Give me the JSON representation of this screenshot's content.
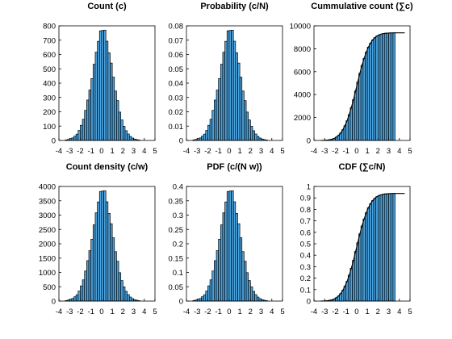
{
  "chart_data": [
    {
      "type": "bar",
      "title": "Count (c)",
      "xlim": [
        -4,
        5
      ],
      "ylim": [
        0,
        800
      ],
      "xticks": [
        "-4",
        "-3",
        "-2",
        "-1",
        "0",
        "1",
        "2",
        "3",
        "4",
        "5"
      ],
      "yticks": [
        "0",
        "100",
        "200",
        "300",
        "400",
        "500",
        "600",
        "700",
        "800"
      ],
      "bin_centers": [
        -3.3,
        -3.1,
        -2.9,
        -2.7,
        -2.5,
        -2.3,
        -2.1,
        -1.9,
        -1.7,
        -1.5,
        -1.3,
        -1.1,
        -0.9,
        -0.7,
        -0.5,
        -0.3,
        -0.1,
        0.1,
        0.3,
        0.5,
        0.7,
        0.9,
        1.1,
        1.3,
        1.5,
        1.7,
        1.9,
        2.1,
        2.3,
        2.5,
        2.7,
        2.9,
        3.1,
        3.3,
        3.5
      ],
      "values": [
        4,
        7,
        13,
        18,
        30,
        44,
        70,
        106,
        148,
        210,
        282,
        352,
        432,
        532,
        616,
        692,
        765,
        768,
        770,
        693,
        612,
        540,
        442,
        345,
        278,
        198,
        143,
        99,
        68,
        45,
        28,
        17,
        10,
        6,
        3
      ]
    },
    {
      "type": "bar",
      "title": "Probability (c/N)",
      "xlim": [
        -4,
        5
      ],
      "ylim": [
        0,
        0.08
      ],
      "xticks": [
        "-4",
        "-3",
        "-2",
        "-1",
        "0",
        "1",
        "2",
        "3",
        "4",
        "5"
      ],
      "yticks": [
        "0",
        "0.01",
        "0.02",
        "0.03",
        "0.04",
        "0.05",
        "0.06",
        "0.07",
        "0.08"
      ],
      "bin_centers": [
        -3.3,
        -3.1,
        -2.9,
        -2.7,
        -2.5,
        -2.3,
        -2.1,
        -1.9,
        -1.7,
        -1.5,
        -1.3,
        -1.1,
        -0.9,
        -0.7,
        -0.5,
        -0.3,
        -0.1,
        0.1,
        0.3,
        0.5,
        0.7,
        0.9,
        1.1,
        1.3,
        1.5,
        1.7,
        1.9,
        2.1,
        2.3,
        2.5,
        2.7,
        2.9,
        3.1,
        3.3,
        3.5
      ],
      "values": [
        0.0004,
        0.0007,
        0.0013,
        0.0018,
        0.003,
        0.0044,
        0.007,
        0.0106,
        0.0148,
        0.021,
        0.0282,
        0.0352,
        0.0432,
        0.0532,
        0.0616,
        0.0692,
        0.0765,
        0.0768,
        0.077,
        0.0693,
        0.0612,
        0.054,
        0.0442,
        0.0345,
        0.0278,
        0.0198,
        0.0143,
        0.0099,
        0.0068,
        0.0045,
        0.0028,
        0.0017,
        0.001,
        0.0006,
        0.0003
      ]
    },
    {
      "type": "bar",
      "title": "Cummulative count (∑c)",
      "xlim": [
        -4,
        5
      ],
      "ylim": [
        0,
        10000
      ],
      "xticks": [
        "-4",
        "-3",
        "-2",
        "-1",
        "0",
        "1",
        "2",
        "3",
        "4",
        "5"
      ],
      "yticks": [
        "0",
        "2000",
        "4000",
        "6000",
        "8000",
        "10000"
      ],
      "bin_centers": [
        -3.3,
        -3.1,
        -2.9,
        -2.7,
        -2.5,
        -2.3,
        -2.1,
        -1.9,
        -1.7,
        -1.5,
        -1.3,
        -1.1,
        -0.9,
        -0.7,
        -0.5,
        -0.3,
        -0.1,
        0.1,
        0.3,
        0.5,
        0.7,
        0.9,
        1.1,
        1.3,
        1.5,
        1.7,
        1.9,
        2.1,
        2.3,
        2.5,
        2.7,
        2.9,
        3.1,
        3.3,
        3.5
      ],
      "values": [
        4,
        11,
        24,
        42,
        72,
        116,
        186,
        292,
        440,
        650,
        932,
        1284,
        1716,
        2248,
        2864,
        3556,
        4321,
        5089,
        5859,
        6552,
        7164,
        7704,
        8146,
        8491,
        8769,
        8967,
        9110,
        9209,
        9277,
        9322,
        9350,
        9367,
        9377,
        9383,
        9386
      ],
      "curve": true
    },
    {
      "type": "bar",
      "title": "Count density (c/w)",
      "xlim": [
        -4,
        5
      ],
      "ylim": [
        0,
        4000
      ],
      "xticks": [
        "-4",
        "-3",
        "-2",
        "-1",
        "0",
        "1",
        "2",
        "3",
        "4",
        "5"
      ],
      "yticks": [
        "0",
        "500",
        "1000",
        "1500",
        "2000",
        "2500",
        "3000",
        "3500",
        "4000"
      ],
      "bin_centers": [
        -3.3,
        -3.1,
        -2.9,
        -2.7,
        -2.5,
        -2.3,
        -2.1,
        -1.9,
        -1.7,
        -1.5,
        -1.3,
        -1.1,
        -0.9,
        -0.7,
        -0.5,
        -0.3,
        -0.1,
        0.1,
        0.3,
        0.5,
        0.7,
        0.9,
        1.1,
        1.3,
        1.5,
        1.7,
        1.9,
        2.1,
        2.3,
        2.5,
        2.7,
        2.9,
        3.1,
        3.3,
        3.5
      ],
      "values": [
        20,
        35,
        65,
        90,
        150,
        220,
        350,
        530,
        740,
        1050,
        1410,
        1760,
        2160,
        2660,
        3080,
        3460,
        3825,
        3840,
        3850,
        3465,
        3060,
        2700,
        2210,
        1725,
        1390,
        990,
        715,
        495,
        340,
        225,
        140,
        85,
        50,
        30,
        15
      ]
    },
    {
      "type": "bar",
      "title": "PDF (c/(N w))",
      "xlim": [
        -4,
        5
      ],
      "ylim": [
        0,
        0.4
      ],
      "xticks": [
        "-4",
        "-3",
        "-2",
        "-1",
        "0",
        "1",
        "2",
        "3",
        "4",
        "5"
      ],
      "yticks": [
        "0",
        "0.05",
        "0.1",
        "0.15",
        "0.2",
        "0.25",
        "0.3",
        "0.35",
        "0.4"
      ],
      "bin_centers": [
        -3.3,
        -3.1,
        -2.9,
        -2.7,
        -2.5,
        -2.3,
        -2.1,
        -1.9,
        -1.7,
        -1.5,
        -1.3,
        -1.1,
        -0.9,
        -0.7,
        -0.5,
        -0.3,
        -0.1,
        0.1,
        0.3,
        0.5,
        0.7,
        0.9,
        1.1,
        1.3,
        1.5,
        1.7,
        1.9,
        2.1,
        2.3,
        2.5,
        2.7,
        2.9,
        3.1,
        3.3,
        3.5
      ],
      "values": [
        0.002,
        0.0035,
        0.0065,
        0.009,
        0.015,
        0.022,
        0.035,
        0.053,
        0.074,
        0.105,
        0.141,
        0.176,
        0.216,
        0.266,
        0.308,
        0.346,
        0.3825,
        0.384,
        0.385,
        0.3465,
        0.306,
        0.27,
        0.221,
        0.1725,
        0.139,
        0.099,
        0.0715,
        0.0495,
        0.034,
        0.0225,
        0.014,
        0.0085,
        0.005,
        0.003,
        0.0015
      ]
    },
    {
      "type": "bar",
      "title": "CDF (∑c/N)",
      "xlim": [
        -4,
        5
      ],
      "ylim": [
        0,
        1
      ],
      "xticks": [
        "-4",
        "-3",
        "-2",
        "-1",
        "0",
        "1",
        "2",
        "3",
        "4",
        "5"
      ],
      "yticks": [
        "0",
        "0.1",
        "0.2",
        "0.3",
        "0.4",
        "0.5",
        "0.6",
        "0.7",
        "0.8",
        "0.9",
        "1"
      ],
      "bin_centers": [
        -3.3,
        -3.1,
        -2.9,
        -2.7,
        -2.5,
        -2.3,
        -2.1,
        -1.9,
        -1.7,
        -1.5,
        -1.3,
        -1.1,
        -0.9,
        -0.7,
        -0.5,
        -0.3,
        -0.1,
        0.1,
        0.3,
        0.5,
        0.7,
        0.9,
        1.1,
        1.3,
        1.5,
        1.7,
        1.9,
        2.1,
        2.3,
        2.5,
        2.7,
        2.9,
        3.1,
        3.3,
        3.5
      ],
      "values": [
        0.0004,
        0.0011,
        0.0024,
        0.0042,
        0.0072,
        0.0116,
        0.0186,
        0.0292,
        0.044,
        0.065,
        0.0932,
        0.1284,
        0.1716,
        0.2248,
        0.2864,
        0.3556,
        0.4321,
        0.5089,
        0.5859,
        0.6552,
        0.7164,
        0.7704,
        0.8146,
        0.8491,
        0.8769,
        0.8967,
        0.911,
        0.9209,
        0.9277,
        0.9322,
        0.935,
        0.9367,
        0.9377,
        0.9383,
        0.9386
      ],
      "curve": true
    }
  ]
}
